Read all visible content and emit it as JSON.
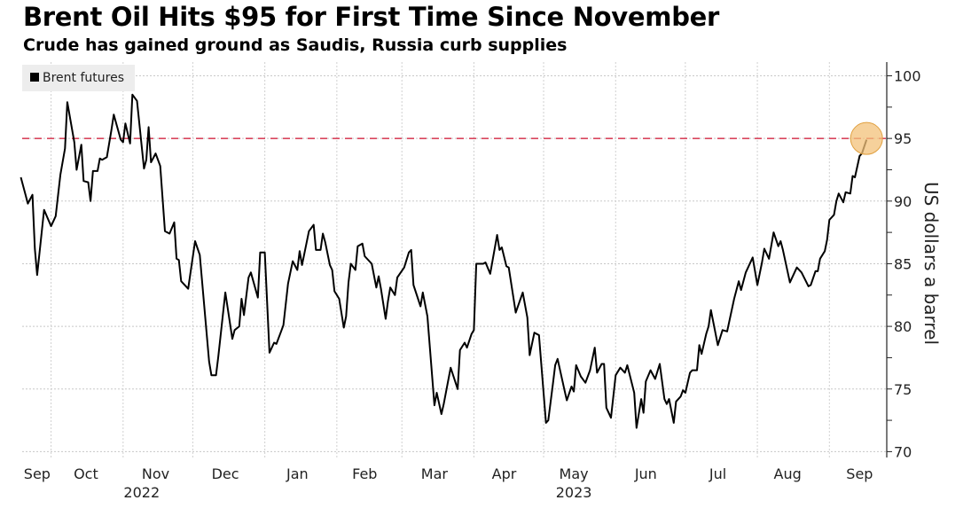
{
  "chart_data": {
    "type": "line",
    "title": "Brent Oil Hits $95 for First Time Since November",
    "subtitle": "Crude has gained ground as Saudis, Russia curb supplies",
    "xlabel": "",
    "ylabel": "US dollars a barrel",
    "x_unit": "days since 2022-09-01",
    "ylim": [
      70,
      100
    ],
    "yticks": [
      70,
      75,
      80,
      85,
      90,
      95,
      100
    ],
    "grid": true,
    "legend": {
      "position": "top-left",
      "entries": [
        "Brent futures"
      ]
    },
    "reference_line": {
      "value": 95,
      "style": "dashed",
      "color": "#d9465e"
    },
    "highlight": {
      "x": 381,
      "y": 95,
      "color": "#f3c27a"
    },
    "month_gridlines": [
      30,
      61,
      91,
      122,
      153,
      181,
      212,
      242,
      273,
      303,
      334,
      365
    ],
    "xtick_labels": [
      {
        "label": "Sep",
        "x": 24
      },
      {
        "label": "Oct",
        "x": 45
      },
      {
        "label": "Nov",
        "x": 75
      },
      {
        "label": "Dec",
        "x": 105
      },
      {
        "label": "Jan",
        "x": 136
      },
      {
        "label": "Feb",
        "x": 165
      },
      {
        "label": "Mar",
        "x": 195
      },
      {
        "label": "Apr",
        "x": 225
      },
      {
        "label": "May",
        "x": 255
      },
      {
        "label": "Jun",
        "x": 286
      },
      {
        "label": "Jul",
        "x": 317
      },
      {
        "label": "Aug",
        "x": 347
      },
      {
        "label": "Sep",
        "x": 378
      }
    ],
    "year_labels": [
      {
        "label": "2022",
        "x": 69
      },
      {
        "label": "2023",
        "x": 255
      }
    ],
    "series": [
      {
        "name": "Brent futures",
        "color": "#000000",
        "x": [
          17,
          19,
          20,
          22,
          23,
          24,
          27,
          30,
          32,
          34,
          36,
          37,
          40,
          41,
          43,
          44,
          46,
          47,
          48,
          50,
          51,
          52,
          54,
          56,
          57,
          60,
          61,
          62,
          64,
          65,
          67,
          70,
          71,
          72,
          73,
          75,
          77,
          79,
          81,
          83,
          84,
          85,
          86,
          89,
          92,
          94,
          98,
          99,
          101,
          102,
          105,
          108,
          109,
          111,
          112,
          113,
          115,
          116,
          119,
          120,
          122,
          124,
          126,
          127,
          129,
          130,
          132,
          134,
          136,
          137,
          138,
          141,
          143,
          144,
          146,
          147,
          148,
          150,
          151,
          152,
          154,
          156,
          157,
          158,
          159,
          161,
          162,
          164,
          165,
          168,
          170,
          171,
          172,
          174,
          175,
          176,
          178,
          179,
          182,
          184,
          185,
          186,
          189,
          190,
          192,
          195,
          196,
          198,
          199,
          202,
          205,
          206,
          208,
          209,
          211,
          212,
          213,
          216,
          217,
          219,
          222,
          223,
          224,
          226,
          227,
          230,
          233,
          235,
          236,
          238,
          240,
          243,
          244,
          246,
          247,
          248,
          251,
          252,
          254,
          255,
          256,
          258,
          260,
          262,
          264,
          265,
          267,
          268,
          269,
          271,
          273,
          275,
          277,
          278,
          281,
          282,
          284,
          285,
          286,
          288,
          290,
          292,
          294,
          295,
          296,
          298,
          299,
          301,
          302,
          303,
          305,
          306,
          308,
          309,
          310,
          312,
          313,
          314,
          317,
          319,
          321,
          324,
          326,
          327,
          329,
          332,
          334,
          336,
          337,
          339,
          341,
          343,
          344,
          345,
          348,
          351,
          353,
          356,
          357,
          359,
          360,
          361,
          363,
          364,
          365,
          367,
          368,
          369,
          371,
          372,
          374,
          375,
          376,
          378,
          379,
          381
        ],
        "values": [
          91.9,
          90.5,
          89.8,
          90.5,
          86.2,
          84.1,
          89.3,
          88.0,
          88.8,
          92.1,
          94.2,
          97.9,
          94.7,
          92.5,
          94.5,
          91.6,
          91.5,
          90.0,
          92.4,
          92.4,
          93.4,
          93.3,
          93.5,
          95.7,
          96.9,
          94.9,
          94.7,
          96.2,
          94.6,
          98.5,
          98.0,
          92.6,
          93.3,
          95.9,
          93.1,
          93.8,
          92.8,
          87.6,
          87.4,
          88.3,
          85.4,
          85.3,
          83.6,
          83.0,
          86.8,
          85.7,
          77.2,
          76.1,
          76.1,
          77.6,
          82.7,
          79.0,
          79.7,
          80.0,
          82.2,
          80.9,
          83.9,
          84.3,
          82.3,
          85.9,
          85.9,
          77.9,
          78.7,
          78.6,
          79.6,
          80.1,
          83.4,
          85.2,
          84.5,
          86.0,
          84.9,
          87.6,
          88.1,
          86.1,
          86.1,
          87.4,
          86.7,
          84.9,
          84.5,
          82.8,
          82.2,
          79.9,
          80.8,
          83.5,
          85.0,
          84.5,
          86.4,
          86.6,
          85.6,
          85.0,
          83.1,
          84.0,
          83.0,
          80.6,
          82.0,
          83.1,
          82.5,
          83.9,
          84.7,
          85.9,
          86.1,
          83.3,
          81.6,
          82.7,
          80.8,
          73.7,
          74.7,
          73.0,
          73.8,
          76.7,
          75.0,
          78.1,
          78.7,
          78.3,
          79.4,
          79.7,
          85.0,
          85.0,
          85.1,
          84.2,
          87.3,
          86.1,
          86.3,
          84.8,
          84.7,
          81.1,
          82.7,
          80.7,
          77.7,
          79.5,
          79.3,
          72.3,
          72.5,
          75.4,
          76.9,
          77.4,
          74.9,
          74.1,
          75.2,
          74.8,
          76.9,
          76.0,
          75.5,
          76.5,
          78.3,
          76.3,
          77.0,
          77.0,
          73.5,
          72.7,
          76.1,
          76.7,
          76.3,
          76.9,
          74.7,
          71.9,
          74.2,
          73.1,
          75.6,
          76.5,
          75.8,
          77.0,
          74.2,
          73.8,
          74.2,
          72.3,
          74.0,
          74.4,
          74.9,
          74.7,
          76.3,
          76.5,
          76.5,
          78.5,
          77.8,
          79.4,
          80.0,
          81.3,
          78.5,
          79.7,
          79.6,
          82.2,
          83.6,
          82.9,
          84.3,
          85.5,
          83.3,
          85.1,
          86.2,
          85.4,
          87.5,
          86.4,
          86.8,
          86.1,
          83.5,
          84.7,
          84.3,
          83.2,
          83.3,
          84.4,
          84.4,
          85.4,
          86.0,
          86.9,
          88.5,
          88.9,
          90.0,
          90.6,
          89.9,
          90.7,
          90.6,
          92.0,
          91.9,
          93.6,
          93.8,
          94.9
        ]
      }
    ]
  }
}
